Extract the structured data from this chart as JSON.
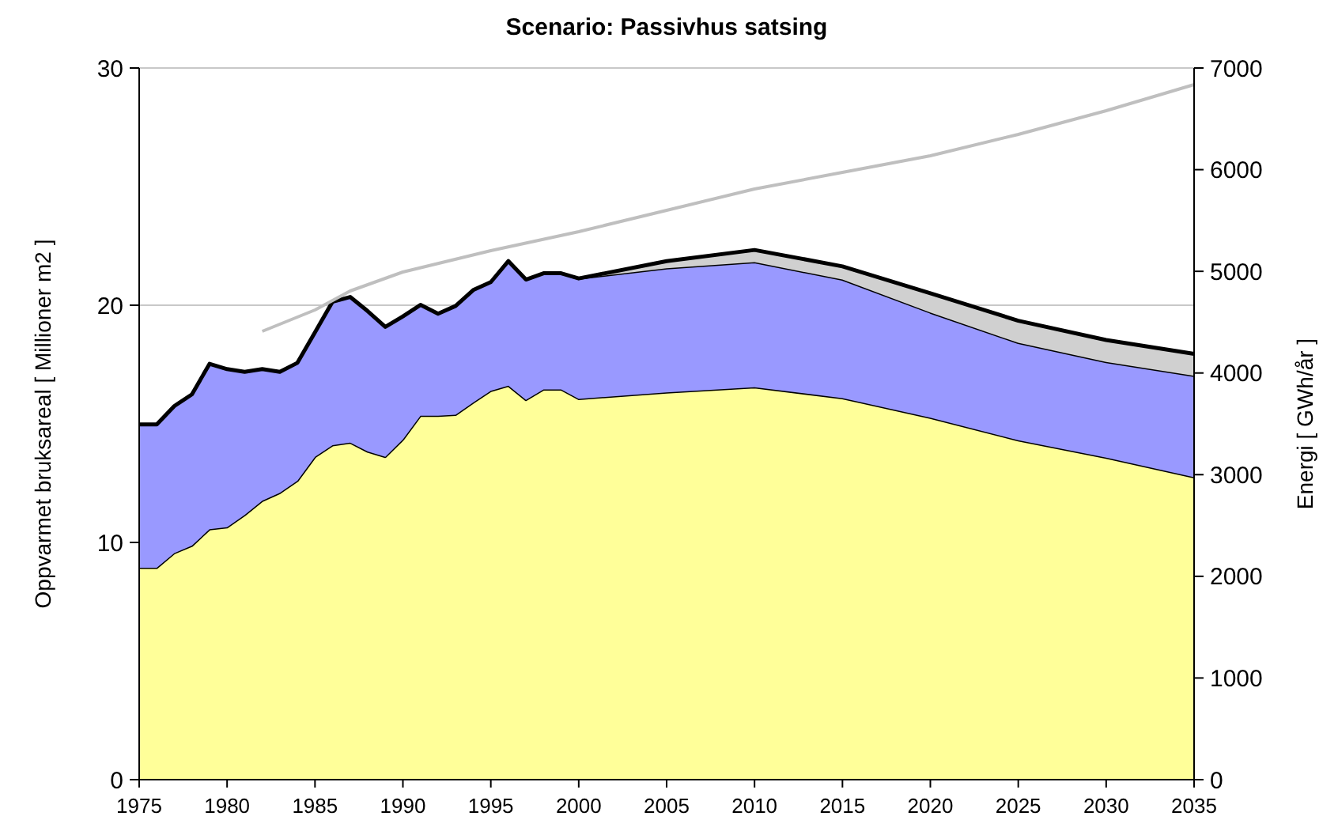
{
  "chart_data": {
    "type": "area",
    "title": "Scenario: Passivhus satsing",
    "ylabel": "Oppvarmet bruksareal [ Millioner m2 ]",
    "y2label": "Energi [ GWh/år ]",
    "stacked": true,
    "grid": "y",
    "x": [
      1975,
      1976,
      1977,
      1978,
      1979,
      1980,
      1981,
      1982,
      1983,
      1984,
      1985,
      1986,
      1987,
      1988,
      1989,
      1990,
      1991,
      1992,
      1993,
      1994,
      1995,
      1996,
      1997,
      1998,
      1999,
      2000,
      2005,
      2010,
      2015,
      2020,
      2025,
      2030,
      2035
    ],
    "xlim": [
      1975,
      2035
    ],
    "xticks": [
      1975,
      1980,
      1985,
      1990,
      1995,
      2000,
      2005,
      2010,
      2015,
      2020,
      2025,
      2030,
      2035
    ],
    "ylim": [
      0,
      30
    ],
    "yticks": [
      0,
      10,
      20,
      30
    ],
    "y2lim": [
      0,
      7000
    ],
    "y2ticks": [
      0,
      1000,
      2000,
      3000,
      4000,
      5000,
      6000,
      7000
    ],
    "series": [
      {
        "color": "#ffff99",
        "axis": "y2",
        "values": [
          2084,
          2084,
          2229,
          2302,
          2463,
          2483,
          2603,
          2743,
          2821,
          2940,
          3175,
          3290,
          3315,
          3227,
          3175,
          3346,
          3580,
          3580,
          3590,
          3710,
          3824,
          3875,
          3735,
          3838,
          3838,
          3745,
          3810,
          3860,
          3753,
          3560,
          3339,
          3168,
          2975
        ]
      },
      {
        "color": "#9999ff",
        "axis": "y2",
        "values": [
          1410,
          1410,
          1446,
          1488,
          1627,
          1555,
          1409,
          1295,
          1191,
          1160,
          1226,
          1411,
          1433,
          1381,
          1278,
          1211,
          1090,
          1003,
          1070,
          1106,
          1070,
          1226,
          1184,
          1143,
          1143,
          1185,
          1220,
          1230,
          1166,
          1035,
          958,
          940,
          998
        ]
      },
      {
        "color": "#d0d0d0",
        "axis": "y2",
        "values": [
          0,
          0,
          0,
          0,
          0,
          0,
          0,
          0,
          0,
          0,
          0,
          0,
          0,
          0,
          0,
          0,
          0,
          0,
          0,
          0,
          0,
          0,
          0,
          0,
          0,
          0,
          70,
          120,
          130,
          190,
          217,
          216,
          216
        ]
      },
      {
        "type": "line",
        "color": "#bfbfbf",
        "axis": "y",
        "x": [
          1982,
          1985,
          1987,
          1990,
          1995,
          2000,
          2005,
          2010,
          2015,
          2020,
          2025,
          2030,
          2035
        ],
        "values": [
          18.9,
          19.8,
          20.6,
          21.4,
          22.3,
          23.1,
          24.0,
          24.9,
          25.6,
          26.3,
          27.2,
          28.2,
          29.3
        ]
      }
    ]
  }
}
